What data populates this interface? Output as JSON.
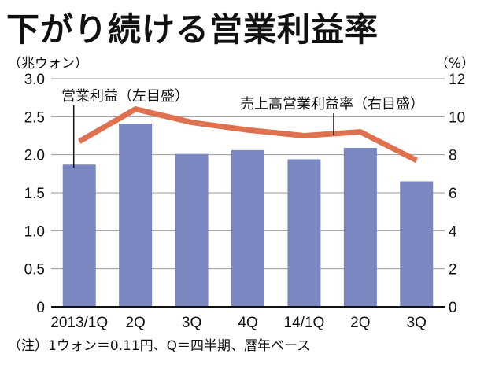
{
  "title": "下がり続ける営業利益率",
  "left_unit": "（兆ウォン）",
  "right_unit": "（%）",
  "note": "（注）1ウォン＝0.11円、Q＝四半期、暦年ベース",
  "colors": {
    "bar": "#7b87c1",
    "line": "#e0714f",
    "axis": "#111111"
  },
  "chart_data": {
    "type": "bar",
    "categories": [
      "2013/1Q",
      "2Q",
      "3Q",
      "4Q",
      "14/1Q",
      "2Q",
      "3Q"
    ],
    "series": [
      {
        "name": "営業利益（左目盛）",
        "type": "bar",
        "axis": "left",
        "values": [
          1.87,
          2.41,
          2.01,
          2.06,
          1.94,
          2.09,
          1.65
        ]
      },
      {
        "name": "売上高営業利益率（右目盛）",
        "type": "line",
        "axis": "right",
        "values": [
          8.7,
          10.4,
          9.7,
          9.3,
          9.0,
          9.2,
          7.7
        ]
      }
    ],
    "y_left": {
      "ylim": [
        0,
        3.0
      ],
      "ticks": [
        "3.0",
        "2.5",
        "2.0",
        "1.5",
        "1.0",
        "0.5",
        "0"
      ]
    },
    "y_right": {
      "ylim": [
        0,
        12
      ],
      "ticks": [
        "12",
        "10",
        "8",
        "6",
        "4",
        "2",
        "0"
      ]
    },
    "grid": true
  }
}
